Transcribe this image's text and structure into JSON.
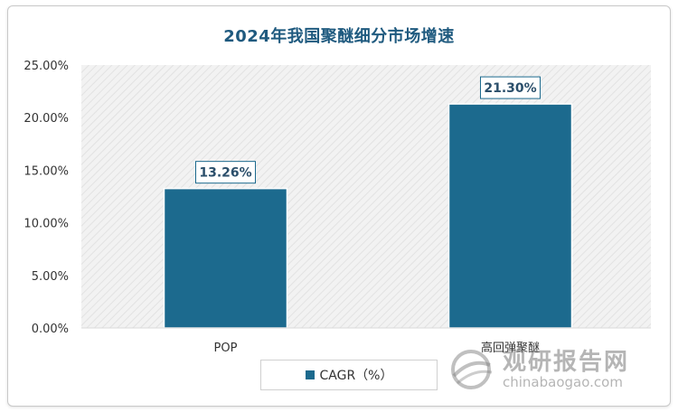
{
  "chart_data": {
    "type": "bar",
    "title": "2024年我国聚醚细分市场增速",
    "categories": [
      "POP",
      "高回弹聚醚"
    ],
    "series": [
      {
        "name": "CAGR（%）",
        "values": [
          13.26,
          21.3
        ],
        "labels": [
          "13.26%",
          "21.30%"
        ]
      }
    ],
    "ylim": [
      0,
      25
    ],
    "yticks": [
      "0.00%",
      "5.00%",
      "10.00%",
      "15.00%",
      "20.00%",
      "25.00%"
    ],
    "xlabel": "",
    "ylabel": "",
    "grid": false,
    "legend_position": "bottom",
    "bar_color": "#1c6a8e",
    "label_color": "#2b4f6b"
  },
  "watermark": {
    "cn": "观研报告网",
    "en": "chinabaogao.com"
  }
}
